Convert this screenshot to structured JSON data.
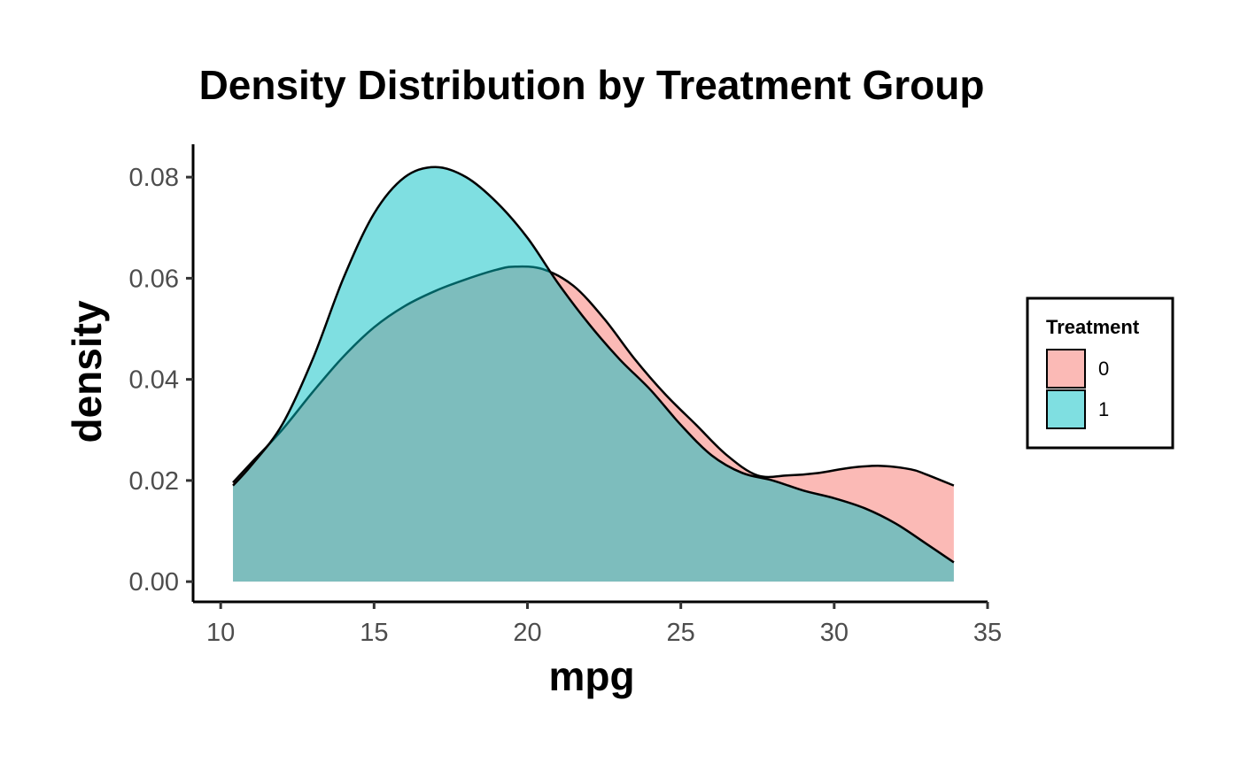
{
  "chart_data": {
    "type": "area",
    "subtype": "density",
    "title": "Density Distribution by Treatment Group",
    "xlabel": "mpg",
    "ylabel": "density",
    "xlim": [
      9.1,
      35.0
    ],
    "ylim": [
      -0.004,
      0.0865
    ],
    "x_ticks": [
      10,
      15,
      20,
      25,
      30,
      35
    ],
    "y_ticks": [
      0.0,
      0.02,
      0.04,
      0.06,
      0.08
    ],
    "x_tick_labels": [
      "10",
      "15",
      "20",
      "25",
      "30",
      "35"
    ],
    "y_tick_labels": [
      "0.00",
      "0.02",
      "0.04",
      "0.06",
      "0.08"
    ],
    "grid": false,
    "legend": {
      "title": "Treatment",
      "position": "right",
      "entries": [
        "0",
        "1"
      ]
    },
    "series": [
      {
        "name": "0",
        "color": "#F8766D",
        "fill_opacity": 0.5,
        "points": [
          [
            10.4,
            0.0196
          ],
          [
            11.0,
            0.0235
          ],
          [
            12.0,
            0.03
          ],
          [
            13.0,
            0.0375
          ],
          [
            14.0,
            0.0445
          ],
          [
            15.0,
            0.0503
          ],
          [
            16.0,
            0.0545
          ],
          [
            17.0,
            0.0575
          ],
          [
            18.0,
            0.0598
          ],
          [
            19.0,
            0.0617
          ],
          [
            19.6,
            0.0623
          ],
          [
            20.5,
            0.0618
          ],
          [
            21.5,
            0.0585
          ],
          [
            22.5,
            0.052
          ],
          [
            23.5,
            0.044
          ],
          [
            24.5,
            0.037
          ],
          [
            25.5,
            0.031
          ],
          [
            26.5,
            0.025
          ],
          [
            27.5,
            0.021
          ],
          [
            28.5,
            0.021
          ],
          [
            29.5,
            0.0215
          ],
          [
            30.5,
            0.0225
          ],
          [
            31.5,
            0.0229
          ],
          [
            32.5,
            0.0222
          ],
          [
            33.0,
            0.0212
          ],
          [
            33.9,
            0.019
          ]
        ]
      },
      {
        "name": "1",
        "color": "#00BFC4",
        "fill_opacity": 0.5,
        "points": [
          [
            10.4,
            0.019
          ],
          [
            11.0,
            0.023
          ],
          [
            12.0,
            0.031
          ],
          [
            13.0,
            0.044
          ],
          [
            14.0,
            0.06
          ],
          [
            15.0,
            0.0728
          ],
          [
            16.0,
            0.08
          ],
          [
            17.0,
            0.082
          ],
          [
            18.0,
            0.08
          ],
          [
            19.0,
            0.075
          ],
          [
            20.0,
            0.068
          ],
          [
            21.0,
            0.059
          ],
          [
            22.0,
            0.051
          ],
          [
            23.0,
            0.044
          ],
          [
            24.0,
            0.038
          ],
          [
            25.0,
            0.031
          ],
          [
            26.0,
            0.025
          ],
          [
            27.0,
            0.0215
          ],
          [
            28.0,
            0.02
          ],
          [
            29.0,
            0.018
          ],
          [
            30.0,
            0.0165
          ],
          [
            31.0,
            0.0145
          ],
          [
            32.0,
            0.0115
          ],
          [
            33.0,
            0.0075
          ],
          [
            33.9,
            0.0038
          ]
        ]
      }
    ]
  }
}
